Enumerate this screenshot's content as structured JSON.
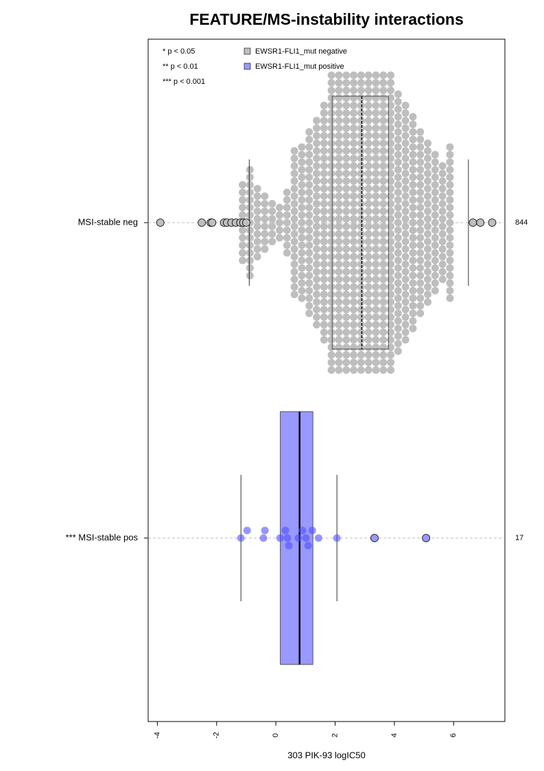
{
  "chart_data": {
    "type": "box",
    "title": "FEATURE/MS-instability interactions",
    "xlabel": "303 PIK-93 logIC50",
    "xlim": [
      -4.31,
      7.73
    ],
    "xticks": [
      -4,
      -2,
      0,
      2,
      4,
      6
    ],
    "categories": [
      "MSI-stable neg",
      "*** MSI-stable pos"
    ],
    "n": [
      844,
      17
    ],
    "annotations": [
      "* p < 0.05",
      "** p < 0.01",
      "*** p < 0.001"
    ],
    "series": [
      {
        "name": "EWSR1-FLI1_mut negative",
        "color": "#bebebe",
        "whisker_low": -0.9,
        "q1": 1.9,
        "median": 2.9,
        "q3": 3.8,
        "whisker_high": 6.5,
        "outliers": [
          -3.9,
          -2.5,
          -2.2,
          -2.15,
          -1.75,
          -1.65,
          -1.5,
          -1.35,
          -1.2,
          -1.1,
          -1.0,
          6.65,
          6.9,
          7.3
        ],
        "swarm_bins": [
          -1.25,
          -1.0,
          -0.75,
          -0.5,
          -0.25,
          0,
          0.25,
          0.5,
          0.75,
          1.0,
          1.25,
          1.5,
          1.75,
          2.0,
          2.25,
          2.5,
          2.75,
          3.0,
          3.25,
          3.5,
          3.75,
          4.0,
          4.25,
          4.5,
          4.75,
          5.0,
          5.25,
          5.5,
          5.75,
          6.0
        ],
        "swarm_counts": [
          11,
          15,
          10,
          8,
          6,
          5,
          9,
          20,
          21,
          25,
          28,
          32,
          40,
          40,
          40,
          40,
          40,
          40,
          40,
          40,
          40,
          35,
          32,
          29,
          25,
          22,
          19,
          16,
          21
        ]
      },
      {
        "name": "EWSR1-FLI1_mut positive",
        "color": "#9999ff",
        "point_color": "#5050ff",
        "whisker_low": -1.18,
        "q1": 0.15,
        "median": 0.8,
        "q3": 1.25,
        "whisker_high": 2.06,
        "points": [
          -1.18,
          -0.97,
          -0.42,
          -0.37,
          0.14,
          0.32,
          0.39,
          0.44,
          0.76,
          0.9,
          1.02,
          1.09,
          1.23,
          1.44,
          2.06
        ],
        "outliers": [
          3.33,
          5.07
        ]
      }
    ]
  }
}
